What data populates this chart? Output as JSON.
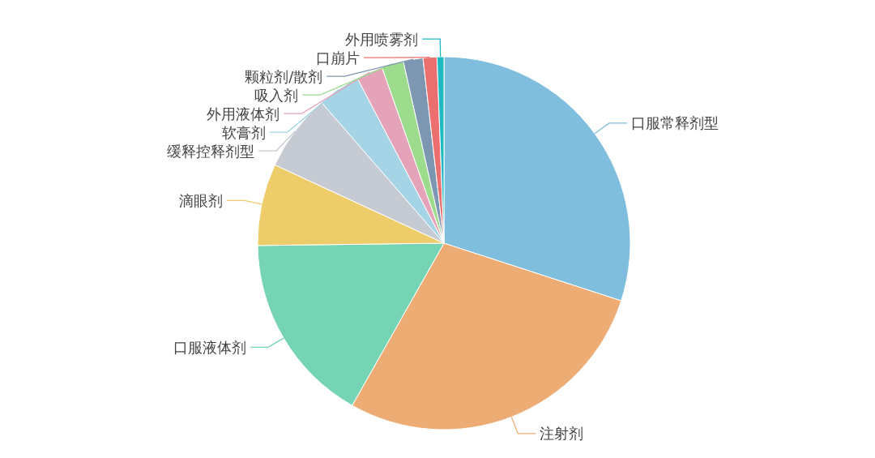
{
  "chart_data": {
    "type": "pie",
    "categories": [
      "口服常释剂型",
      "注射剂",
      "口服液体剂",
      "滴眼剂",
      "缓释控释剂型",
      "软膏剂",
      "外用液体剂",
      "吸入剂",
      "颗粒剂/散剂",
      "口崩片",
      "外用喷雾剂"
    ],
    "values": [
      30,
      28.2,
      16.6,
      7.1,
      6.7,
      3.7,
      2.3,
      1.9,
      1.7,
      1.2,
      0.6
    ],
    "colors": [
      "#7fbedc",
      "#ecac73",
      "#75d4b3",
      "#edcc6a",
      "#c6cbd3",
      "#a5d4e6",
      "#e4a3b8",
      "#9ddc8d",
      "#7d96b2",
      "#ec6f6f",
      "#1fb9c2"
    ]
  }
}
